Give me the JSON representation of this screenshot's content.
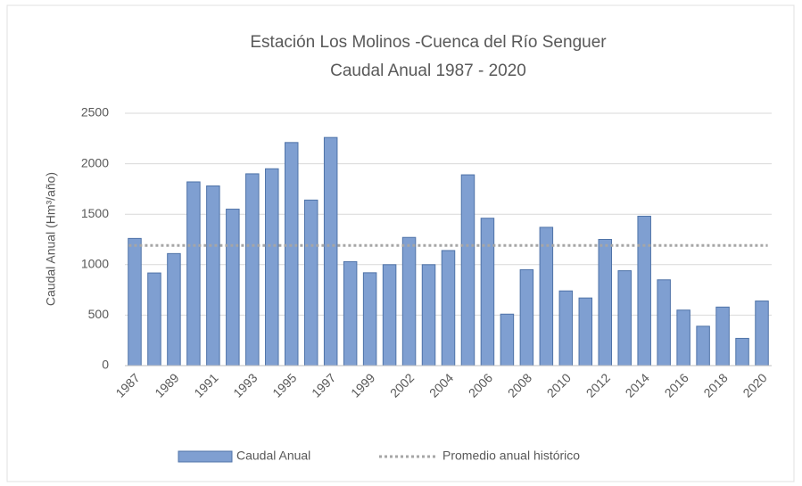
{
  "chart_data": {
    "type": "bar",
    "title": "Estación Los Molinos -Cuenca del Río Senguer",
    "subtitle": "Caudal Anual 1987  - 2020",
    "y_label": "Caudal Anual (Hm³/año)",
    "categories": [
      "1987",
      null,
      "1989",
      null,
      "1991",
      null,
      "1993",
      null,
      "1995",
      null,
      "1997",
      null,
      "1999",
      null,
      "2002",
      null,
      "2004",
      null,
      "2006",
      null,
      "2008",
      null,
      "2010",
      null,
      "2012",
      null,
      "2014",
      null,
      "2016",
      null,
      "2018",
      null,
      "2020"
    ],
    "series": [
      {
        "name": "Caudal Anual",
        "color": "#7f9fd1",
        "values": [
          1260,
          918,
          1110,
          1820,
          1780,
          1550,
          1900,
          1950,
          2210,
          1640,
          2260,
          1030,
          920,
          1000,
          1270,
          1000,
          1140,
          1890,
          1460,
          510,
          950,
          1370,
          740,
          670,
          1250,
          940,
          1480,
          850,
          550,
          390,
          580,
          270,
          640
        ]
      }
    ],
    "average": {
      "name": "Promedio anual histórico",
      "value": 1190,
      "color": "#a6a6a6"
    },
    "ylim": [
      0,
      2500
    ],
    "yticks": [
      0,
      500,
      1000,
      1500,
      2000,
      2500
    ],
    "grid": true
  }
}
